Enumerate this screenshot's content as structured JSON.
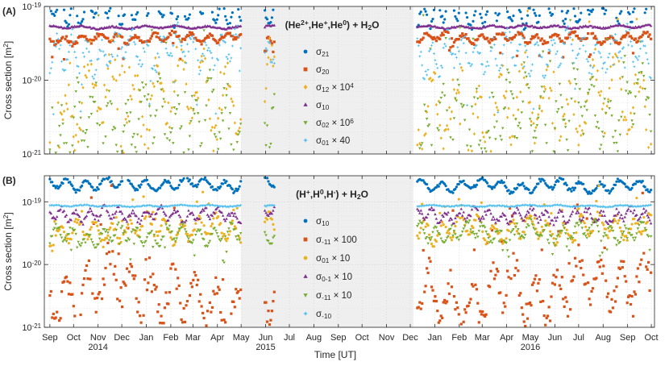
{
  "chart_data": [
    {
      "type": "scatter",
      "panel_label": "(A)",
      "title": "(He2+,He+,He0) + H2O",
      "title_parts": [
        {
          "t": "(He",
          "s": "n"
        },
        {
          "t": "2+",
          "s": "sup"
        },
        {
          "t": ",He",
          "s": "n"
        },
        {
          "t": "+",
          "s": "sup"
        },
        {
          "t": ",He",
          "s": "n"
        },
        {
          "t": "0",
          "s": "sup"
        },
        {
          "t": ") + H",
          "s": "n"
        },
        {
          "t": "2",
          "s": "sub"
        },
        {
          "t": "O",
          "s": "n"
        }
      ],
      "ylabel": "Cross section [m2]",
      "ylabel_parts": [
        {
          "t": "Cross section [m",
          "s": "n"
        },
        {
          "t": "2",
          "s": "sup"
        },
        {
          "t": "]",
          "s": "n"
        }
      ],
      "yscale": "log",
      "ylim": [
        1e-21,
        1e-19
      ],
      "ytick_labels": [
        [
          {
            "t": "10",
            "s": "n"
          },
          {
            "t": "-21",
            "s": "sup"
          }
        ],
        [
          {
            "t": "10",
            "s": "n"
          },
          {
            "t": "-20",
            "s": "sup"
          }
        ],
        [
          {
            "t": "10",
            "s": "n"
          },
          {
            "t": "-19",
            "s": "sup"
          }
        ]
      ],
      "gap_shading": [
        "2015-05-01",
        "2015-12-05"
      ],
      "grid": true,
      "legend_position": "top-center, inside gap",
      "series": [
        {
          "name": "σ21",
          "legend_parts": [
            {
              "t": "σ",
              "s": "n"
            },
            {
              "t": "21",
              "s": "sub"
            }
          ],
          "color": "#0072BD",
          "marker": "circle",
          "base": 7.6e-20,
          "amp": 0.16,
          "noise": 0.05,
          "spike": 0.0,
          "spikedir": 0,
          "period": 17,
          "phase": 0.3,
          "keypoints": [
            [
              "2014-09-01",
              8.4e-20
            ],
            [
              "2014-12-01",
              1e-19
            ],
            [
              "2015-03-01",
              9.2e-20
            ],
            [
              "2015-09-01",
              9e-20
            ],
            [
              "2016-03-01",
              8.4e-20
            ],
            [
              "2016-06-01",
              9.5e-20
            ],
            [
              "2016-10-01",
              1.12e-19
            ]
          ]
        },
        {
          "name": "σ20",
          "legend_parts": [
            {
              "t": "σ",
              "s": "n"
            },
            {
              "t": "20",
              "s": "sub"
            }
          ],
          "color": "#D95319",
          "marker": "square",
          "base": 3.7e-20,
          "amp": 0.05,
          "noise": 0.03,
          "spike": 0.1,
          "spikedir": -1,
          "period": 23,
          "phase": 1.1,
          "keypoints": [
            [
              "2014-09-01",
              3.6e-20
            ],
            [
              "2015-06-01",
              3.9e-20
            ],
            [
              "2016-10-01",
              3.7e-20
            ]
          ]
        },
        {
          "name": "σ12 × 10^4",
          "legend_parts": [
            {
              "t": "σ",
              "s": "n"
            },
            {
              "t": "12",
              "s": "sub"
            },
            {
              "t": " × 10",
              "s": "n"
            },
            {
              "t": "4",
              "s": "sup"
            }
          ],
          "color": "#EDB120",
          "marker": "diamond",
          "base": 5e-21,
          "amp": 0.45,
          "noise": 0.22,
          "spike": 0.35,
          "spikedir": 1,
          "period": 29,
          "phase": 2.0,
          "keypoints": [
            [
              "2014-09-01",
              2.5e-21
            ],
            [
              "2014-10-15",
              5e-21
            ],
            [
              "2014-12-15",
              6e-21
            ],
            [
              "2015-04-01",
              7e-21
            ],
            [
              "2016-01-01",
              2.5e-21
            ],
            [
              "2016-06-01",
              4.5e-21
            ],
            [
              "2016-10-01",
              6e-21
            ]
          ]
        },
        {
          "name": "σ10",
          "legend_parts": [
            {
              "t": "σ",
              "s": "n"
            },
            {
              "t": "10",
              "s": "sub"
            }
          ],
          "color": "#7E2F8E",
          "marker": "triangle-up",
          "base": 5.2e-20,
          "amp": 0.015,
          "noise": 0.01,
          "spike": 0.0,
          "spikedir": 0,
          "period": 40,
          "phase": 0.5,
          "keypoints": [
            [
              "2014-09-01",
              5.2e-20
            ],
            [
              "2016-10-01",
              5.3e-20
            ]
          ]
        },
        {
          "name": "σ02 × 10^6",
          "legend_parts": [
            {
              "t": "σ",
              "s": "n"
            },
            {
              "t": "02",
              "s": "sub"
            },
            {
              "t": " × 10",
              "s": "n"
            },
            {
              "t": "6",
              "s": "sup"
            }
          ],
          "color": "#77AC30",
          "marker": "triangle-down",
          "base": 2.5e-21,
          "amp": 0.4,
          "noise": 0.25,
          "spike": 0.5,
          "spikedir": 1,
          "period": 21,
          "phase": 1.7,
          "keypoints": [
            [
              "2014-09-01",
              1.6e-21
            ],
            [
              "2014-12-01",
              3e-21
            ],
            [
              "2015-04-01",
              2.4e-21
            ],
            [
              "2016-01-01",
              2e-21
            ],
            [
              "2016-07-01",
              4e-21
            ],
            [
              "2016-10-01",
              6e-21
            ]
          ]
        },
        {
          "name": "σ01 × 40",
          "legend_parts": [
            {
              "t": "σ",
              "s": "n"
            },
            {
              "t": "01",
              "s": "sub"
            },
            {
              "t": " × 40",
              "s": "n"
            }
          ],
          "color": "#4DBEEE",
          "marker": "star",
          "base": 2.4e-20,
          "amp": 0.2,
          "noise": 0.1,
          "spike": 0.25,
          "spikedir": -1,
          "period": 19,
          "phase": 2.6,
          "keypoints": [
            [
              "2014-09-01",
              2e-20
            ],
            [
              "2015-01-01",
              2.6e-20
            ],
            [
              "2016-01-01",
              2.2e-20
            ],
            [
              "2016-10-01",
              2.6e-20
            ]
          ]
        }
      ]
    },
    {
      "type": "scatter",
      "panel_label": "(B)",
      "title": "(H+,H0,H-) + H2O",
      "title_parts": [
        {
          "t": "(H",
          "s": "n"
        },
        {
          "t": "+",
          "s": "sup"
        },
        {
          "t": ",H",
          "s": "n"
        },
        {
          "t": "0",
          "s": "sup"
        },
        {
          "t": ",H",
          "s": "n"
        },
        {
          "t": "-",
          "s": "sup"
        },
        {
          "t": ") + H",
          "s": "n"
        },
        {
          "t": "2",
          "s": "sub"
        },
        {
          "t": "O",
          "s": "n"
        }
      ],
      "ylabel": "Cross section [m2]",
      "ylabel_parts": [
        {
          "t": "Cross section [m",
          "s": "n"
        },
        {
          "t": "2",
          "s": "sup"
        },
        {
          "t": "]",
          "s": "n"
        }
      ],
      "yscale": "log",
      "ylim": [
        1e-21,
        2.6e-19
      ],
      "ytick_labels": [
        [
          {
            "t": "10",
            "s": "n"
          },
          {
            "t": "-21",
            "s": "sup"
          }
        ],
        [
          {
            "t": "10",
            "s": "n"
          },
          {
            "t": "-20",
            "s": "sup"
          }
        ],
        [
          {
            "t": "10",
            "s": "n"
          },
          {
            "t": "-19",
            "s": "sup"
          }
        ]
      ],
      "gap_shading": [
        "2015-05-01",
        "2015-12-05"
      ],
      "grid": true,
      "legend_position": "top-center, inside gap",
      "series": [
        {
          "name": "σ10",
          "legend_parts": [
            {
              "t": "σ",
              "s": "n"
            },
            {
              "t": "10",
              "s": "sub"
            }
          ],
          "color": "#0072BD",
          "marker": "circle",
          "base": 1.9e-19,
          "amp": 0.08,
          "noise": 0.03,
          "spike": 0.0,
          "spikedir": 0,
          "period": 25,
          "phase": 0.8,
          "keypoints": [
            [
              "2014-09-01",
              1.95e-19
            ],
            [
              "2015-06-01",
              1.9e-19
            ],
            [
              "2016-10-01",
              1.75e-19
            ]
          ]
        },
        {
          "name": "σ-11 × 100",
          "legend_parts": [
            {
              "t": "σ",
              "s": "n"
            },
            {
              "t": "-11",
              "s": "sub"
            },
            {
              "t": " × 100",
              "s": "n"
            }
          ],
          "color": "#D95319",
          "marker": "square",
          "base": 3e-21,
          "amp": 0.35,
          "noise": 0.2,
          "spike": 0.4,
          "spikedir": 1,
          "period": 27,
          "phase": 1.3,
          "keypoints": [
            [
              "2014-09-01",
              3e-21
            ],
            [
              "2014-12-01",
              5e-21
            ],
            [
              "2015-03-01",
              2.4e-21
            ],
            [
              "2016-01-01",
              2.5e-21
            ],
            [
              "2016-06-01",
              4e-21
            ],
            [
              "2016-10-01",
              7e-21
            ]
          ]
        },
        {
          "name": "σ01 × 10",
          "legend_parts": [
            {
              "t": "σ",
              "s": "n"
            },
            {
              "t": "01",
              "s": "sub"
            },
            {
              "t": " × 10",
              "s": "n"
            }
          ],
          "color": "#EDB120",
          "marker": "circle",
          "base": 3.2e-20,
          "amp": 0.15,
          "noise": 0.06,
          "spike": 0.15,
          "spikedir": 1,
          "period": 22,
          "phase": 2.2,
          "keypoints": [
            [
              "2014-09-01",
              3e-20
            ],
            [
              "2015-01-01",
              3.8e-20
            ],
            [
              "2016-06-01",
              3.6e-20
            ],
            [
              "2016-10-01",
              4.4e-20
            ]
          ]
        },
        {
          "name": "σ0-1 × 10",
          "legend_parts": [
            {
              "t": "σ",
              "s": "n"
            },
            {
              "t": "0-1",
              "s": "sub"
            },
            {
              "t": " × 10",
              "s": "n"
            }
          ],
          "color": "#7E2F8E",
          "marker": "triangle-up",
          "base": 6e-20,
          "amp": 0.08,
          "noise": 0.05,
          "spike": 0.0,
          "spikedir": 0,
          "period": 18,
          "phase": 0.2,
          "keypoints": [
            [
              "2014-09-01",
              6.2e-20
            ],
            [
              "2016-10-01",
              6e-20
            ]
          ]
        },
        {
          "name": "σ-11 × 10",
          "legend_parts": [
            {
              "t": "σ",
              "s": "n"
            },
            {
              "t": "-11",
              "s": "sub"
            },
            {
              "t": " × 10",
              "s": "n"
            }
          ],
          "color": "#77AC30",
          "marker": "triangle-down",
          "base": 2.9e-20,
          "amp": 0.12,
          "noise": 0.05,
          "spike": 0.12,
          "spikedir": -1,
          "period": 20,
          "phase": 3.0,
          "keypoints": [
            [
              "2014-09-01",
              2.8e-20
            ],
            [
              "2015-03-01",
              3e-20
            ],
            [
              "2016-10-01",
              3.4e-20
            ]
          ]
        },
        {
          "name": "σ-10",
          "legend_parts": [
            {
              "t": "σ",
              "s": "n"
            },
            {
              "t": "-10",
              "s": "sub"
            }
          ],
          "color": "#4DBEEE",
          "marker": "star",
          "base": 8.6e-20,
          "amp": 0.01,
          "noise": 0.008,
          "spike": 0.0,
          "spikedir": 0,
          "period": 40,
          "phase": 0.0,
          "keypoints": [
            [
              "2014-09-01",
              8.6e-20
            ],
            [
              "2016-10-01",
              8.6e-20
            ]
          ]
        }
      ]
    }
  ],
  "x_axis": {
    "label": "Time [UT]",
    "range": [
      "2014-08-25",
      "2016-10-05"
    ],
    "month_ticks": [
      {
        "date": "2014-09-01",
        "label": "Sep"
      },
      {
        "date": "2014-10-01",
        "label": "Oct"
      },
      {
        "date": "2014-11-01",
        "label": "Nov"
      },
      {
        "date": "2014-12-01",
        "label": "Dec"
      },
      {
        "date": "2015-01-01",
        "label": "Jan"
      },
      {
        "date": "2015-02-01",
        "label": "Feb"
      },
      {
        "date": "2015-03-01",
        "label": "Mar"
      },
      {
        "date": "2015-04-01",
        "label": "Apr"
      },
      {
        "date": "2015-05-01",
        "label": "May"
      },
      {
        "date": "2015-06-01",
        "label": "Jun"
      },
      {
        "date": "2015-07-01",
        "label": "Jul"
      },
      {
        "date": "2015-08-01",
        "label": "Aug"
      },
      {
        "date": "2015-09-01",
        "label": "Sep"
      },
      {
        "date": "2015-10-01",
        "label": "Oct"
      },
      {
        "date": "2015-11-01",
        "label": "Nov"
      },
      {
        "date": "2015-12-01",
        "label": "Dec"
      },
      {
        "date": "2016-01-01",
        "label": "Jan"
      },
      {
        "date": "2016-02-01",
        "label": "Feb"
      },
      {
        "date": "2016-03-01",
        "label": "Mar"
      },
      {
        "date": "2016-04-01",
        "label": "Apr"
      },
      {
        "date": "2016-05-01",
        "label": "May"
      },
      {
        "date": "2016-06-01",
        "label": "Jun"
      },
      {
        "date": "2016-07-01",
        "label": "Jul"
      },
      {
        "date": "2016-08-01",
        "label": "Aug"
      },
      {
        "date": "2016-09-01",
        "label": "Sep"
      },
      {
        "date": "2016-10-01",
        "label": "Oct"
      }
    ],
    "year_labels": [
      {
        "date": "2014-11-01",
        "label": "2014"
      },
      {
        "date": "2015-06-01",
        "label": "2015"
      },
      {
        "date": "2016-05-01",
        "label": "2016"
      }
    ],
    "data_periods": [
      [
        "2014-09-01",
        "2015-05-01"
      ],
      [
        "2015-05-31",
        "2015-06-12"
      ],
      [
        "2015-12-10",
        "2016-10-01"
      ]
    ]
  }
}
